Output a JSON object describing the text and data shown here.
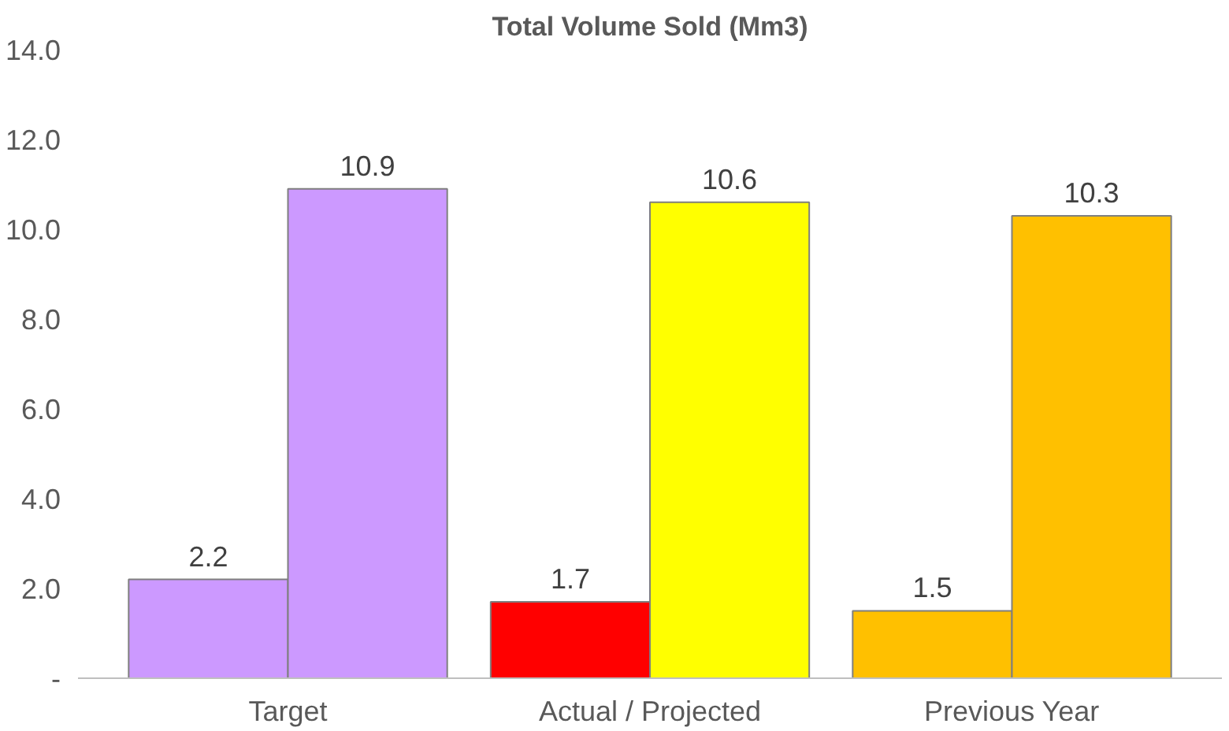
{
  "chart_data": {
    "type": "bar",
    "title": "Total Volume Sold (Mm3)",
    "categories": [
      "Target",
      "Actual / Projected",
      "Previous Year"
    ],
    "series": [
      {
        "colors": [
          "#cc99ff",
          "#ff0000",
          "#ffc000"
        ],
        "values": [
          2.2,
          1.7,
          1.5
        ]
      },
      {
        "colors": [
          "#cc99ff",
          "#ffff00",
          "#ffc000"
        ],
        "values": [
          10.9,
          10.6,
          10.3
        ]
      }
    ],
    "ylim": [
      0,
      14
    ],
    "yticks": [
      {
        "value": 0,
        "label": "-"
      },
      {
        "value": 2,
        "label": "2.0"
      },
      {
        "value": 4,
        "label": "4.0"
      },
      {
        "value": 6,
        "label": "6.0"
      },
      {
        "value": 8,
        "label": "8.0"
      },
      {
        "value": 10,
        "label": "10.0"
      },
      {
        "value": 12,
        "label": "12.0"
      },
      {
        "value": 14,
        "label": "14.0"
      }
    ],
    "data_labels": true
  }
}
